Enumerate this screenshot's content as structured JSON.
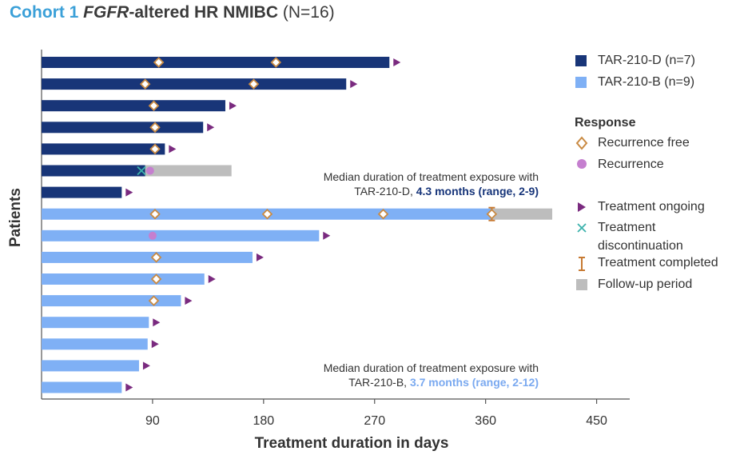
{
  "title": {
    "part1": "Cohort 1",
    "part2": "FGFR",
    "part3": "-altered HR NMIBC",
    "part4": "(N=16)"
  },
  "colors": {
    "dark_blue": "#183578",
    "light_blue": "#7fb0f5",
    "followup": "#bdbdbd",
    "recurrence_free": "#c98a43",
    "recurrence": "#c57fcf",
    "ongoing": "#7a2a7f",
    "discontinuation": "#3bb2ac",
    "completed": "#c77a32",
    "title_blue": "#3ba0d8"
  },
  "annotations": {
    "d_line1": "Median duration of treatment exposure with",
    "d_line2_prefix": "TAR-210-D, ",
    "d_line2_bold": "4.3 months (range, 2-9)",
    "b_line1": "Median duration of treatment exposure with",
    "b_line2_prefix": "TAR-210-B, ",
    "b_line2_bold": "3.7 months (range, 2-12)"
  },
  "legend": {
    "d_label": "TAR-210-D (n=7)",
    "b_label": "TAR-210-B (n=9)",
    "response_header": "Response",
    "recurrence_free": "Recurrence free",
    "recurrence": "Recurrence",
    "ongoing": "Treatment ongoing",
    "discontinuation_1": "Treatment",
    "discontinuation_2": "discontinuation",
    "completed": "Treatment completed",
    "followup": "Follow-up period"
  },
  "chart_data": {
    "type": "bar",
    "orientation": "horizontal swimmer plot",
    "xlabel": "Treatment duration in days",
    "ylabel": "Patients",
    "xlim": [
      0,
      470
    ],
    "xticks": [
      90,
      180,
      270,
      360,
      450
    ],
    "series": [
      {
        "name": "TAR-210-D (n=7)",
        "color": "dark_blue"
      },
      {
        "name": "TAR-210-B (n=9)",
        "color": "light_blue"
      }
    ],
    "patients": [
      {
        "group": "D",
        "duration": 282,
        "followup_end": null,
        "ongoing": true,
        "recurrence_free": [
          95,
          190
        ],
        "recurrence": [],
        "discontinuation": null,
        "completed": null
      },
      {
        "group": "D",
        "duration": 247,
        "followup_end": null,
        "ongoing": true,
        "recurrence_free": [
          84,
          172
        ],
        "recurrence": [],
        "discontinuation": null,
        "completed": null
      },
      {
        "group": "D",
        "duration": 149,
        "followup_end": null,
        "ongoing": true,
        "recurrence_free": [
          91
        ],
        "recurrence": [],
        "discontinuation": null,
        "completed": null
      },
      {
        "group": "D",
        "duration": 131,
        "followup_end": null,
        "ongoing": true,
        "recurrence_free": [
          92
        ],
        "recurrence": [],
        "discontinuation": null,
        "completed": null
      },
      {
        "group": "D",
        "duration": 100,
        "followup_end": null,
        "ongoing": true,
        "recurrence_free": [
          92
        ],
        "recurrence": [],
        "discontinuation": null,
        "completed": null
      },
      {
        "group": "D",
        "duration": 84,
        "followup_end": 154,
        "ongoing": false,
        "recurrence_free": [],
        "recurrence": [
          88
        ],
        "discontinuation": 81,
        "completed": null
      },
      {
        "group": "D",
        "duration": 65,
        "followup_end": null,
        "ongoing": true,
        "recurrence_free": [],
        "recurrence": [],
        "discontinuation": null,
        "completed": null
      },
      {
        "group": "B",
        "duration": 365,
        "followup_end": 414,
        "ongoing": false,
        "recurrence_free": [
          92,
          183,
          277,
          365
        ],
        "recurrence": [],
        "discontinuation": null,
        "completed": 365
      },
      {
        "group": "B",
        "duration": 225,
        "followup_end": null,
        "ongoing": true,
        "recurrence_free": [],
        "recurrence": [
          90
        ],
        "discontinuation": null,
        "completed": null
      },
      {
        "group": "B",
        "duration": 171,
        "followup_end": null,
        "ongoing": true,
        "recurrence_free": [
          93
        ],
        "recurrence": [],
        "discontinuation": null,
        "completed": null
      },
      {
        "group": "B",
        "duration": 132,
        "followup_end": null,
        "ongoing": true,
        "recurrence_free": [
          93
        ],
        "recurrence": [],
        "discontinuation": null,
        "completed": null
      },
      {
        "group": "B",
        "duration": 113,
        "followup_end": null,
        "ongoing": true,
        "recurrence_free": [
          91
        ],
        "recurrence": [],
        "discontinuation": null,
        "completed": null
      },
      {
        "group": "B",
        "duration": 87,
        "followup_end": null,
        "ongoing": true,
        "recurrence_free": [],
        "recurrence": [],
        "discontinuation": null,
        "completed": null
      },
      {
        "group": "B",
        "duration": 86,
        "followup_end": null,
        "ongoing": true,
        "recurrence_free": [],
        "recurrence": [],
        "discontinuation": null,
        "completed": null
      },
      {
        "group": "B",
        "duration": 79,
        "followup_end": null,
        "ongoing": true,
        "recurrence_free": [],
        "recurrence": [],
        "discontinuation": null,
        "completed": null
      },
      {
        "group": "B",
        "duration": 65,
        "followup_end": null,
        "ongoing": true,
        "recurrence_free": [],
        "recurrence": [],
        "discontinuation": null,
        "completed": null
      }
    ]
  }
}
